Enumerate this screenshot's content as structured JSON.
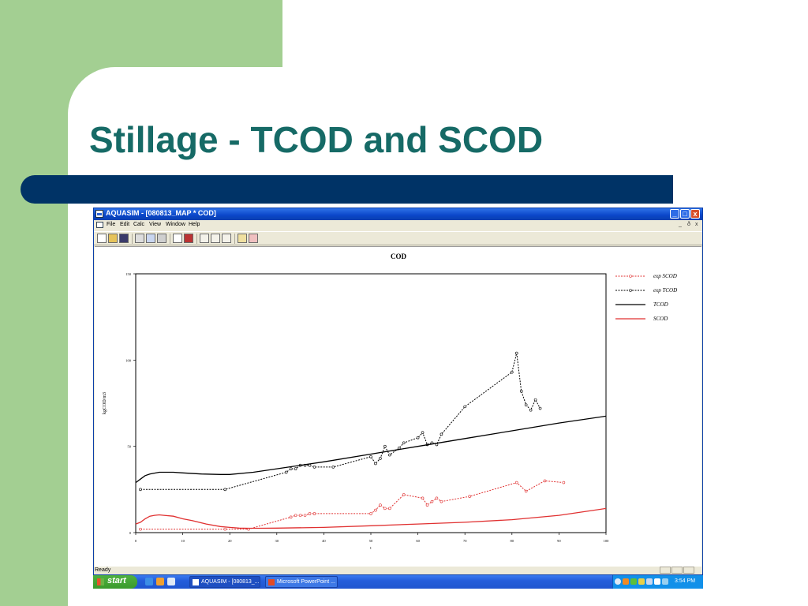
{
  "slide": {
    "title": "Stillage - TCOD and SCOD"
  },
  "window": {
    "title": "AQUASIM - [080813_MAP * COD]",
    "controls": {
      "minimize": "_",
      "maximize": "□",
      "close": "x"
    },
    "menu": [
      "File",
      "Edit",
      "Calc",
      "View",
      "Window",
      "Help"
    ],
    "mdi_controls": [
      "_",
      "ð",
      "x"
    ],
    "status": "Ready"
  },
  "chart_data": {
    "type": "line",
    "title": "COD",
    "xlabel": "t",
    "ylabel": "kgCOD/m3",
    "xlim": [
      0,
      100
    ],
    "ylim": [
      0,
      150
    ],
    "xticks": [
      "0",
      "10",
      "20",
      "30",
      "40",
      "50",
      "60",
      "70",
      "80",
      "90",
      "100"
    ],
    "yticks": [
      "0",
      "50",
      "100",
      "150"
    ],
    "ytick_values": [
      0,
      50,
      100,
      150
    ],
    "series": [
      {
        "name": "exp SCOD",
        "color": "#e03030",
        "dashed": true,
        "markers": true,
        "x": [
          1,
          19,
          24,
          33,
          34,
          35,
          36,
          37,
          38,
          50,
          51,
          52,
          53,
          54,
          57,
          61,
          62,
          63,
          64,
          65,
          71,
          81,
          83,
          87,
          91
        ],
        "y": [
          2,
          2,
          2,
          9,
          10,
          10,
          10,
          11,
          11,
          11,
          13,
          16,
          14,
          14,
          22,
          20,
          16,
          18,
          20,
          18,
          21,
          29,
          24,
          30,
          29
        ]
      },
      {
        "name": "exp TCOD",
        "color": "#000000",
        "dashed": true,
        "markers": true,
        "x": [
          1,
          19,
          32,
          33,
          34,
          35,
          36,
          37,
          38,
          42,
          50,
          51,
          52,
          53,
          54,
          56,
          57,
          60,
          61,
          62,
          63,
          64,
          65,
          70,
          80,
          81,
          82,
          83,
          84,
          85,
          86
        ],
        "y": [
          25,
          25,
          35,
          37,
          37,
          39,
          39,
          39,
          38,
          38,
          44,
          40,
          43,
          50,
          45,
          49,
          52,
          55,
          58,
          51,
          52,
          51,
          57,
          73,
          93,
          104,
          82,
          74,
          71,
          77,
          72
        ]
      },
      {
        "name": "TCOD",
        "color": "#000000",
        "dashed": false,
        "markers": false,
        "x": [
          0,
          1,
          2,
          3,
          4,
          5,
          6,
          8,
          10,
          14,
          18,
          20,
          25,
          30,
          40,
          50,
          60,
          70,
          80,
          90,
          100
        ],
        "y": [
          29,
          31,
          33,
          34,
          34.5,
          35,
          35,
          35,
          34.6,
          34,
          33.7,
          33.7,
          35,
          37,
          41,
          45.5,
          50,
          54.5,
          59,
          63.5,
          67.5
        ]
      },
      {
        "name": "SCOD",
        "color": "#e03030",
        "dashed": false,
        "markers": false,
        "x": [
          0,
          1,
          2,
          3,
          4,
          5,
          6,
          8,
          10,
          12,
          15,
          18,
          20,
          22,
          24,
          26,
          30,
          40,
          50,
          60,
          70,
          80,
          90,
          100
        ],
        "y": [
          5,
          6,
          8,
          9.5,
          10,
          10.3,
          10,
          9.5,
          8,
          7,
          5,
          3.5,
          3,
          2.6,
          2.5,
          2.5,
          2.6,
          3,
          4,
          5,
          6,
          7.5,
          10,
          14
        ]
      }
    ],
    "legend_placement": "right"
  },
  "taskbar": {
    "start_label": "start",
    "tasks": [
      "AQUASIM - [080813_...",
      "Microsoft PowerPoint ..."
    ],
    "clock": "3:54 PM"
  }
}
